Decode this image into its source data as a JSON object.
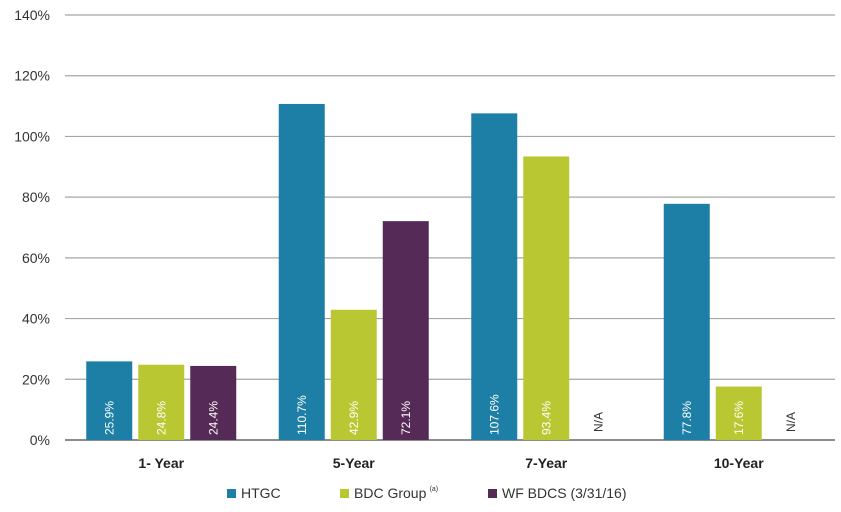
{
  "chart_data": {
    "type": "bar",
    "categories": [
      "1- Year",
      "5-Year",
      "7-Year",
      "10-Year"
    ],
    "series": [
      {
        "name": "HTGC",
        "sup": "",
        "values": [
          25.9,
          110.7,
          107.6,
          77.8
        ],
        "labels": [
          "25.9%",
          "110.7%",
          "107.6%",
          "77.8%"
        ]
      },
      {
        "name": "BDC Group",
        "sup": "(a)",
        "values": [
          24.8,
          42.9,
          93.4,
          17.6
        ],
        "labels": [
          "24.8%",
          "42.9%",
          "93.4%",
          "17.6%"
        ]
      },
      {
        "name": "WF BDCS (3/31/16)",
        "sup": "",
        "values": [
          24.4,
          72.1,
          null,
          null
        ],
        "labels": [
          "24.4%",
          "72.1%",
          "N/A",
          "N/A"
        ]
      }
    ],
    "ylim": [
      0,
      140
    ],
    "yticks": [
      0,
      20,
      40,
      60,
      80,
      100,
      120,
      140
    ],
    "ytick_labels": [
      "0%",
      "20%",
      "40%",
      "60%",
      "80%",
      "100%",
      "120%",
      "140%"
    ],
    "grid": true,
    "legend_position": "bottom"
  },
  "colors": {
    "HTGC": "#1D7FA6",
    "BDC Group": "#B9C832",
    "WF BDCS (3/31/16)": "#552A56",
    "grid": "#a6a6a6",
    "axis": "#666666"
  }
}
